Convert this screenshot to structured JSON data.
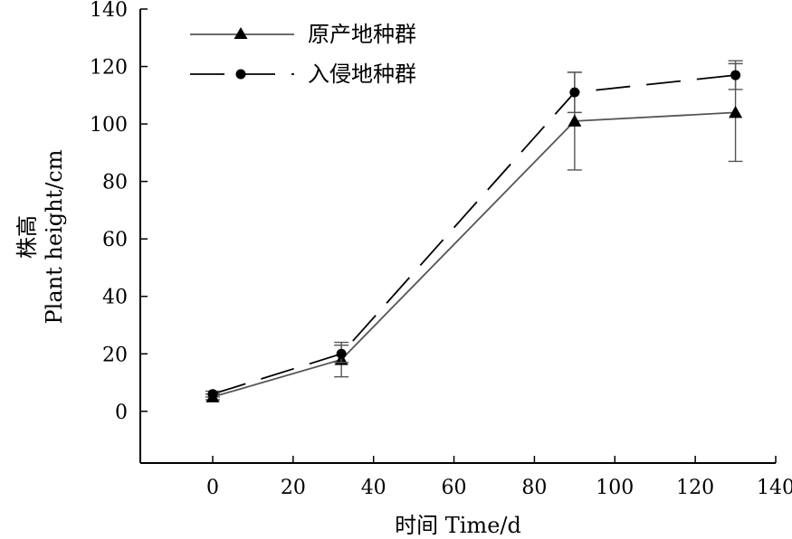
{
  "chart_data": {
    "type": "line",
    "title": "",
    "xlabel": "时间 Time/d",
    "ylabel_line1": "株高",
    "ylabel_line2": "Plant height/cm",
    "xlim": [
      -18,
      140
    ],
    "ylim": [
      -18,
      140
    ],
    "xticks": [
      0,
      20,
      40,
      60,
      80,
      100,
      120,
      140
    ],
    "yticks": [
      0,
      20,
      40,
      60,
      80,
      100,
      120,
      140
    ],
    "grid": false,
    "legend_position": "top-left",
    "series": [
      {
        "name": "原产地种群",
        "marker": "triangle",
        "line_style": "solid",
        "color": "#555555",
        "x": [
          0,
          32,
          90,
          130
        ],
        "y": [
          5,
          18,
          101,
          104
        ],
        "err": [
          1,
          6,
          17,
          17
        ]
      },
      {
        "name": "入侵地种群",
        "marker": "circle",
        "line_style": "dashed",
        "color": "#000000",
        "x": [
          0,
          32,
          90,
          130
        ],
        "y": [
          6,
          20,
          111,
          117
        ],
        "err": [
          1,
          3,
          7,
          5
        ]
      }
    ]
  }
}
